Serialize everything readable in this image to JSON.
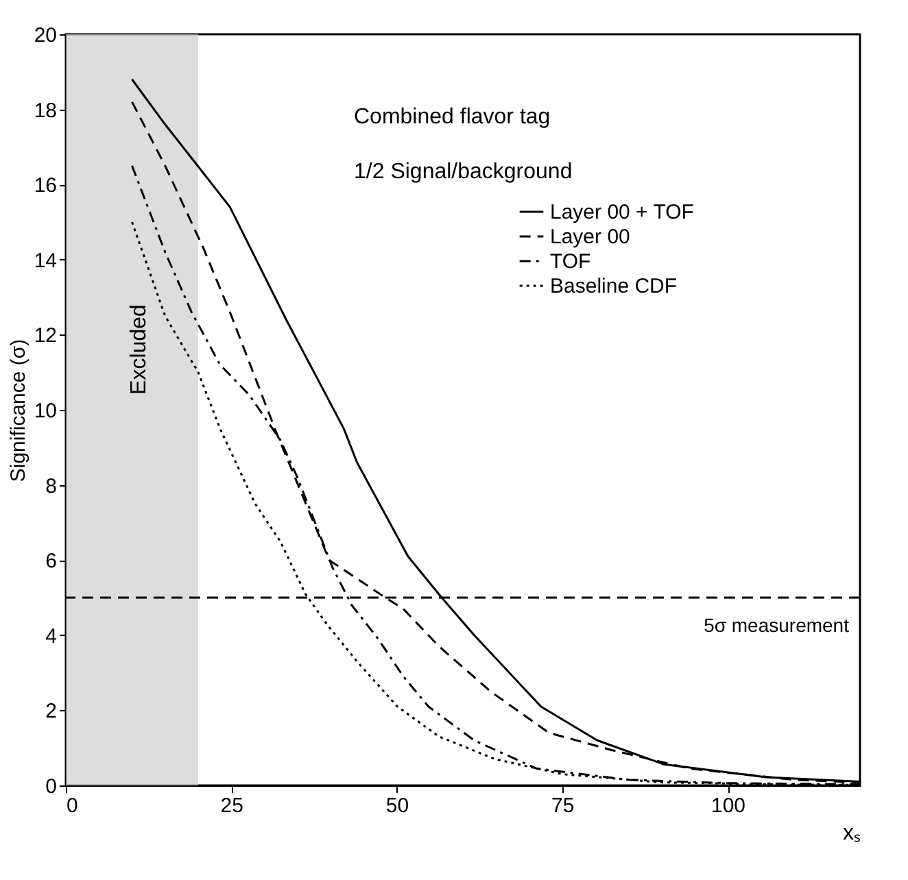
{
  "chart_data": {
    "type": "line",
    "xlabel": "xₛ",
    "ylabel": "Significance (σ)",
    "xlim": [
      0,
      120
    ],
    "ylim": [
      0,
      20
    ],
    "xticks": [
      0,
      25,
      50,
      75,
      100
    ],
    "yticks": [
      0,
      2,
      4,
      6,
      8,
      10,
      12,
      14,
      16,
      18,
      20
    ],
    "grid": false,
    "legend": "top right",
    "marker": "none",
    "series": [
      {
        "name": "Layer 00 + TOF",
        "color": "#000000",
        "line_style": "solid",
        "x": [
          10,
          15,
          20.8,
          24.8,
          33.3,
          42,
          44,
          51.7,
          56.8,
          61.7,
          71.8,
          80.3,
          90.4,
          105.8,
          120
        ],
        "values": [
          18.8,
          17.6,
          16.3,
          15.4,
          12.4,
          9.5,
          8.6,
          6.1,
          5.0,
          4.0,
          2.1,
          1.2,
          0.56,
          0.22,
          0.1
        ]
      },
      {
        "name": "Layer 00",
        "color": "#000000",
        "line_style": "dashed",
        "x": [
          10,
          15,
          20.8,
          24.8,
          31.8,
          39.8,
          48.3,
          51,
          56.4,
          64.2,
          73,
          82.5,
          94.2,
          110,
          120
        ],
        "values": [
          18.2,
          16.5,
          14.3,
          12.6,
          9.4,
          6.0,
          5.0,
          4.7,
          3.7,
          2.5,
          1.4,
          0.94,
          0.45,
          0.15,
          0.08
        ]
      },
      {
        "name": "TOF",
        "color": "#000000",
        "line_style": "dashdot",
        "x": [
          10,
          15,
          19,
          23.3,
          27.7,
          32.4,
          35,
          40.3,
          43.2,
          47.2,
          51,
          54.8,
          61.7,
          71.1,
          85,
          100,
          120
        ],
        "values": [
          16.5,
          14.2,
          12.6,
          11.2,
          10.4,
          9.2,
          8.2,
          5.8,
          4.8,
          3.9,
          2.9,
          2.1,
          1.2,
          0.45,
          0.15,
          0.06,
          0.03
        ]
      },
      {
        "name": "Baseline CDF",
        "color": "#000000",
        "line_style": "dotted",
        "x": [
          10,
          15,
          20,
          23.3,
          28.6,
          32.4,
          36.2,
          39.4,
          44,
          50.1,
          56.4,
          64.9,
          75,
          90,
          110,
          120
        ],
        "values": [
          15.0,
          12.5,
          11.0,
          9.5,
          7.5,
          6.5,
          5.1,
          4.3,
          3.3,
          2.1,
          1.3,
          0.7,
          0.3,
          0.08,
          0.02,
          0.01
        ]
      }
    ],
    "ref_lines": [
      {
        "axis": "y",
        "value": 5,
        "label": "5σ measurement",
        "color": "#000000",
        "line_style": "dashed"
      }
    ],
    "bands": [
      {
        "axis": "x",
        "from": 0,
        "to": 20,
        "label": "Excluded",
        "color": "#cfcfcf"
      }
    ],
    "annotations": [
      "Combined flavor tag",
      "1/2 Signal/background"
    ]
  }
}
